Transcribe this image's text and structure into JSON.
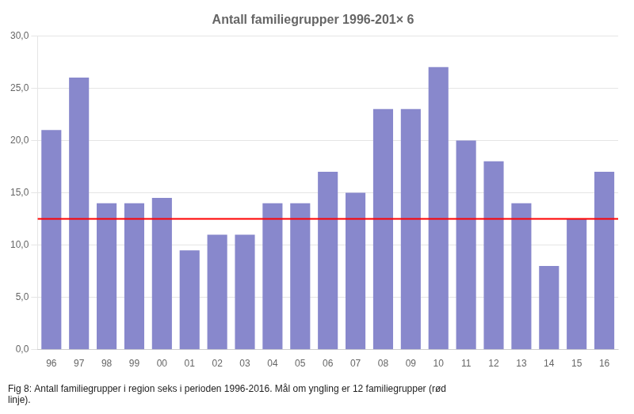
{
  "chart_data": {
    "type": "bar",
    "title": "Antall familiegrupper 1996-201× 6",
    "caption": [
      "Fig 8: Antall familiegrupper i region seks i perioden 1996-2016. Mål om yngling er 12 familiegrupper (rød",
      "linje)."
    ],
    "categories": [
      "96",
      "97",
      "98",
      "99",
      "00",
      "01",
      "02",
      "03",
      "04",
      "05",
      "06",
      "07",
      "08",
      "09",
      "10",
      "11",
      "12",
      "13",
      "14",
      "15",
      "16"
    ],
    "values": [
      21,
      26,
      14,
      14,
      14.5,
      9.5,
      11,
      11,
      14,
      14,
      17,
      15,
      23,
      23,
      27,
      20,
      18,
      14,
      8,
      12.5,
      17
    ],
    "color": "#8888cc",
    "reference_line": {
      "y": 12.5,
      "color": "#ff0000"
    },
    "ylim": [
      0,
      30
    ],
    "yticks": [
      {
        "value": 0,
        "label": "0,0"
      },
      {
        "value": 5,
        "label": "5,0"
      },
      {
        "value": 10,
        "label": "10,0"
      },
      {
        "value": 15,
        "label": "15,0"
      },
      {
        "value": 20,
        "label": "20,0"
      },
      {
        "value": 25,
        "label": "25,0"
      },
      {
        "value": 30,
        "label": "30,0"
      }
    ],
    "grid": true
  }
}
